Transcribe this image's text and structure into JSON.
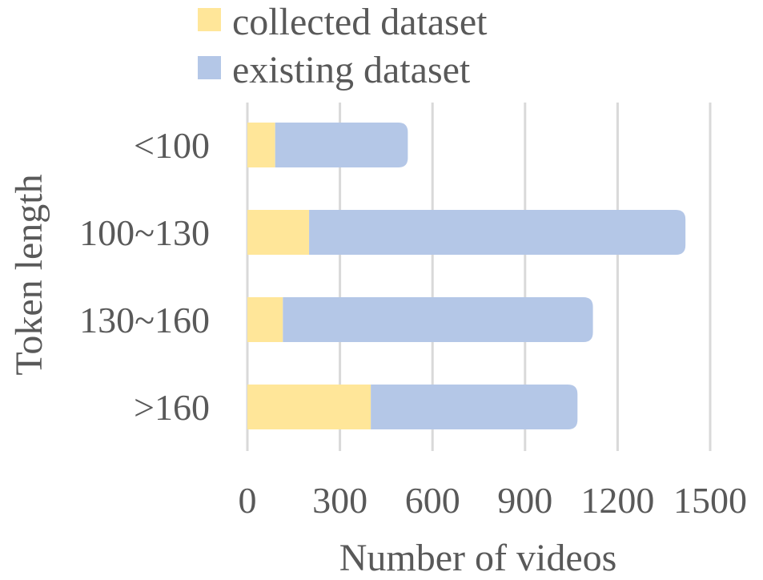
{
  "chart_data": {
    "type": "bar",
    "orientation": "horizontal",
    "stacked": true,
    "categories": [
      "<100",
      "100~130",
      "130~160",
      ">160"
    ],
    "series": [
      {
        "name": "collected dataset",
        "color": "#ffe699",
        "values": [
          90,
          200,
          115,
          400
        ]
      },
      {
        "name": "existing dataset",
        "color": "#b4c7e7",
        "values": [
          430,
          1220,
          1005,
          670
        ]
      }
    ],
    "xlabel": "Number of videos",
    "ylabel": "Token length",
    "xlim": [
      0,
      1500
    ],
    "xticks": [
      "0",
      "300",
      "600",
      "900",
      "1200",
      "1500"
    ],
    "grid": "vertical",
    "legend": "top"
  }
}
